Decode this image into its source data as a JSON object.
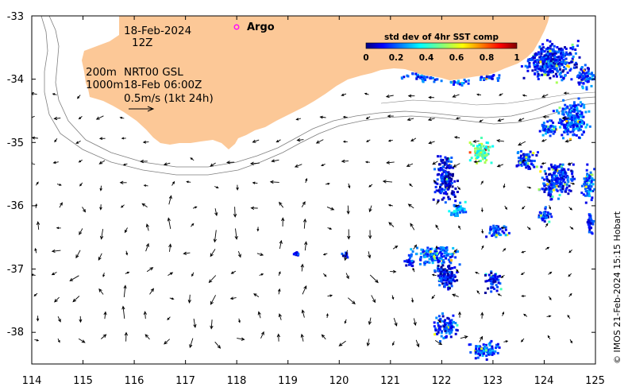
{
  "chart_data": {
    "type": "map",
    "xlim": [
      114,
      125
    ],
    "ylim": [
      -38.5,
      -33
    ],
    "x_ticks": [
      "114",
      "115",
      "116",
      "117",
      "118",
      "119",
      "120",
      "121",
      "122",
      "123",
      "124",
      "125"
    ],
    "y_ticks": [
      "-33",
      "-34",
      "-35",
      "-36",
      "-37",
      "-38"
    ],
    "annotations": {
      "date": "18-Feb-2024",
      "time": "12Z",
      "depth_200": "200m",
      "depth_1000": "1000m",
      "product": "NRT00 GSL",
      "product_time": "18-Feb 06:00Z",
      "scale": "0.5m/s (1kt 24h)"
    },
    "legend": {
      "argo_label": "Argo",
      "argo_color": "#ff00ff"
    },
    "colorbar": {
      "title": "std dev of 4hr SST comp",
      "ticks": [
        "0",
        "0.2",
        "0.4",
        "0.6",
        "0.8",
        "1"
      ],
      "vmin": 0,
      "vmax": 1
    },
    "land_color": "#fcc897",
    "credit": "© IMOS 21-Feb-2024 15:15 Hobart"
  }
}
